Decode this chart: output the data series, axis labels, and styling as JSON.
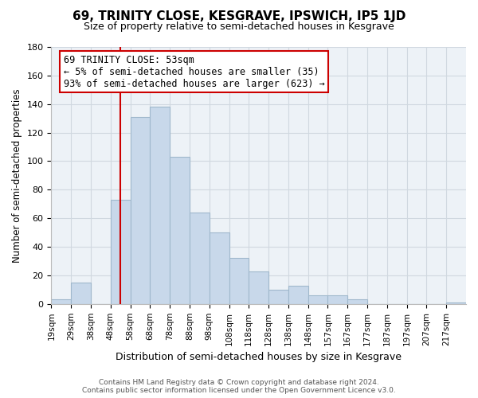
{
  "title": "69, TRINITY CLOSE, KESGRAVE, IPSWICH, IP5 1JD",
  "subtitle": "Size of property relative to semi-detached houses in Kesgrave",
  "xlabel": "Distribution of semi-detached houses by size in Kesgrave",
  "ylabel": "Number of semi-detached properties",
  "bar_color": "#c8d8ea",
  "bar_edge_color": "#a0b8cc",
  "bin_labels": [
    "19sqm",
    "29sqm",
    "38sqm",
    "48sqm",
    "58sqm",
    "68sqm",
    "78sqm",
    "88sqm",
    "98sqm",
    "108sqm",
    "118sqm",
    "128sqm",
    "138sqm",
    "148sqm",
    "157sqm",
    "167sqm",
    "177sqm",
    "187sqm",
    "197sqm",
    "207sqm",
    "217sqm"
  ],
  "bar_heights": [
    3,
    15,
    0,
    73,
    131,
    138,
    103,
    64,
    50,
    32,
    23,
    10,
    13,
    6,
    6,
    3,
    0,
    0,
    0,
    0,
    1
  ],
  "vline_pos": 3.5,
  "annotation_text_line1": "69 TRINITY CLOSE: 53sqm",
  "annotation_text_line2": "← 5% of semi-detached houses are smaller (35)",
  "annotation_text_line3": "93% of semi-detached houses are larger (623) →",
  "ylim": [
    0,
    180
  ],
  "yticks": [
    0,
    20,
    40,
    60,
    80,
    100,
    120,
    140,
    160,
    180
  ],
  "footer_line1": "Contains HM Land Registry data © Crown copyright and database right 2024.",
  "footer_line2": "Contains public sector information licensed under the Open Government Licence v3.0.",
  "grid_color": "#d0d8e0",
  "plot_bg_color": "#edf2f7",
  "vline_color": "#cc0000",
  "ann_box_color": "#cc0000",
  "background_color": "#ffffff",
  "title_fontsize": 11,
  "subtitle_fontsize": 9,
  "ylabel_fontsize": 8.5,
  "xlabel_fontsize": 9,
  "tick_fontsize": 8,
  "xtick_fontsize": 7.5,
  "ann_fontsize": 8.5,
  "footer_fontsize": 6.5
}
